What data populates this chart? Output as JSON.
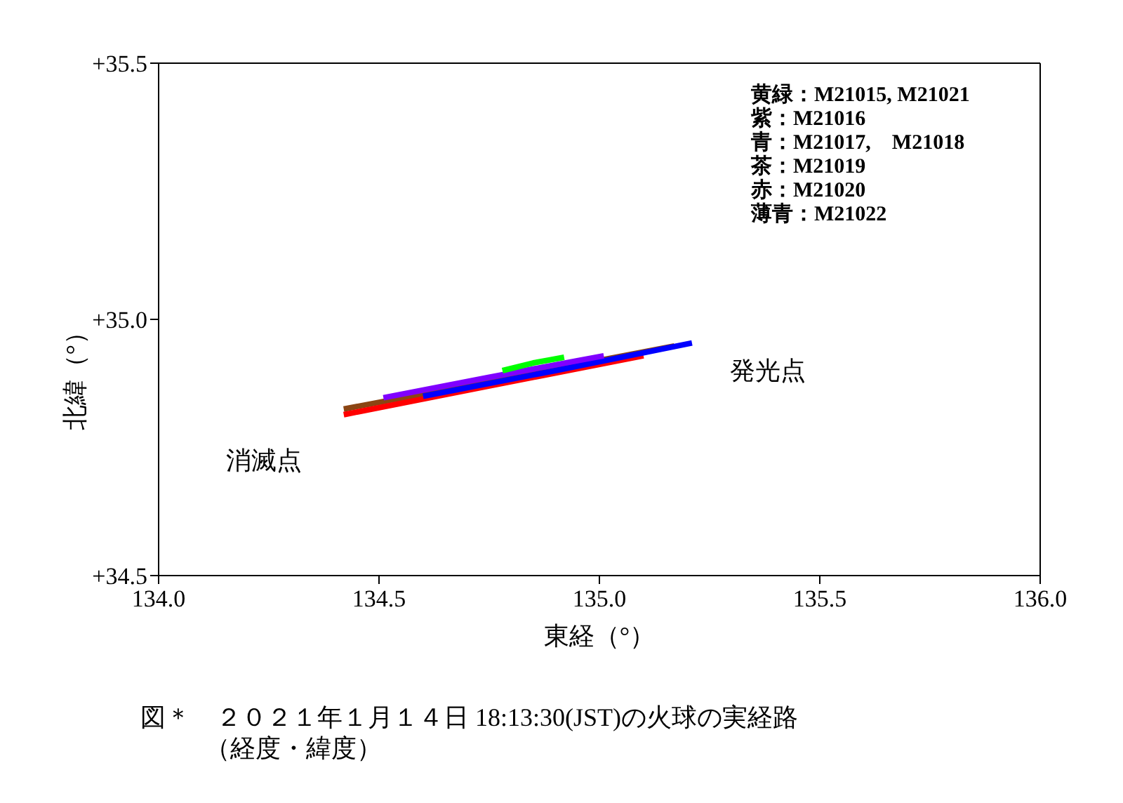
{
  "chart_data": {
    "type": "line",
    "title": "図＊　２０２１年１月１４日 18:13:30(JST)の火球の実経路",
    "subtitle": "（経度・緯度）",
    "xlabel": "東経（°）",
    "ylabel": "北緯（°）",
    "xlim": [
      134.0,
      136.0
    ],
    "xticks": [
      {
        "value": 134,
        "label": "134.0"
      },
      {
        "value": 134.5,
        "label": "134.5"
      },
      {
        "value": 135,
        "label": "135.0"
      },
      {
        "value": 135.5,
        "label": "135.5"
      },
      {
        "value": 136,
        "label": "136.0"
      }
    ],
    "ylim": [
      34.5,
      35.5
    ],
    "yticks": [
      {
        "value": 34.5,
        "label": "+34.5"
      },
      {
        "value": 35,
        "label": "+35.0"
      },
      {
        "value": 35.5,
        "label": "+35.5"
      }
    ],
    "series": [
      {
        "color": "#8b4513",
        "x": [
          134.42,
          134.8,
          135.17
        ],
        "values": [
          34.825,
          34.887,
          34.948
        ]
      },
      {
        "color": "#ff0000",
        "x": [
          134.42,
          134.75,
          135.1
        ],
        "values": [
          34.814,
          34.87,
          34.929
        ]
      },
      {
        "color": "#0000ff",
        "x": [
          134.6,
          134.9,
          135.21
        ],
        "values": [
          34.85,
          34.9,
          34.954
        ]
      },
      {
        "color": "#8000ff",
        "x": [
          134.51,
          134.75,
          135.01
        ],
        "values": [
          34.847,
          34.887,
          34.929
        ]
      },
      {
        "color": "#00ff00",
        "x": [
          134.78,
          134.85,
          134.92
        ],
        "values": [
          34.9,
          34.915,
          34.926
        ]
      }
    ],
    "annotations": [
      "黄緑：M21015, M21021",
      "紫：M21016",
      "青：M21017,　M21018",
      "茶：M21019",
      "赤：M21020",
      "薄青：M21022",
      "発光点",
      "消滅点"
    ]
  }
}
